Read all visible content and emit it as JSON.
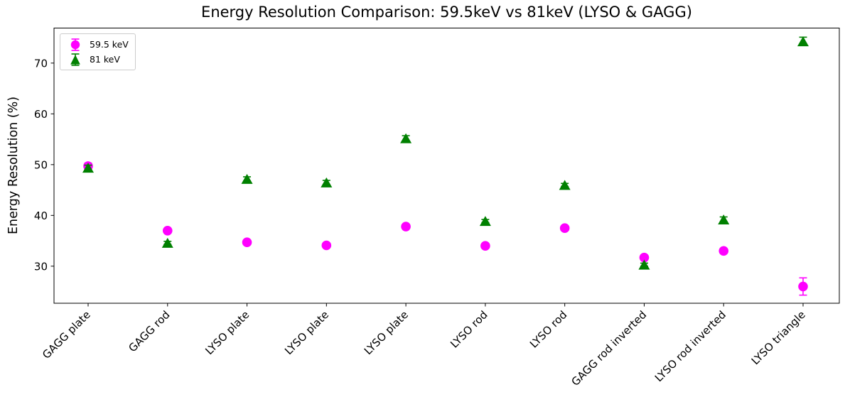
{
  "chart_data": {
    "type": "scatter",
    "title": "Energy Resolution Comparison: 59.5keV vs 81keV (LYSO & GAGG)",
    "xlabel": "",
    "ylabel": "Energy Resolution (%)",
    "categories": [
      "GAGG plate",
      "GAGG rod",
      "LYSO plate",
      "LYSO plate",
      "LYSO plate",
      "LYSO rod",
      "LYSO rod",
      "GAGG rod inverted",
      "LYSO rod inverted",
      "LYSO triangle"
    ],
    "series": [
      {
        "name": "59.5 keV",
        "color": "#ff00ff",
        "marker": "circle",
        "values": [
          49.7,
          37.0,
          34.7,
          34.1,
          37.8,
          34.0,
          37.5,
          31.7,
          33.0,
          26.0
        ],
        "errors": [
          0.6,
          0.3,
          0.3,
          0.3,
          0.3,
          0.3,
          0.3,
          0.4,
          0.3,
          1.7
        ]
      },
      {
        "name": "81 keV",
        "color": "#008000",
        "marker": "triangle",
        "values": [
          49.4,
          34.6,
          47.2,
          46.5,
          55.2,
          38.9,
          46.0,
          30.3,
          39.2,
          74.3
        ],
        "errors": [
          0.5,
          0.3,
          0.4,
          0.4,
          0.5,
          0.3,
          0.3,
          0.3,
          0.5,
          0.8
        ]
      }
    ],
    "ylim": [
      22.7,
      76.9
    ],
    "yticks": [
      30,
      40,
      50,
      60,
      70
    ],
    "grid": false,
    "legend_position": "upper left",
    "tick_label_rotation_deg": 45
  }
}
